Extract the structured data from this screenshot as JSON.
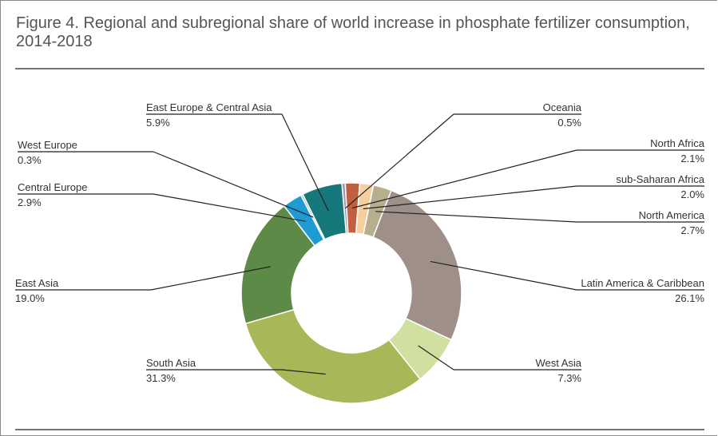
{
  "figure": {
    "title": "Figure 4. Regional and subregional share of world increase in phosphate fertilizer consumption, 2014-2018"
  },
  "chart_data": {
    "type": "pie",
    "title": "Figure 4. Regional and subregional share of world increase in phosphate fertilizer consumption, 2014-2018",
    "donut": true,
    "categories": [
      "Oceania",
      "North Africa",
      "sub-Saharan Africa",
      "North America",
      "Latin America & Caribbean",
      "West Asia",
      "South Asia",
      "East Asia",
      "Central Europe",
      "West Europe",
      "East Europe & Central Asia"
    ],
    "values": [
      0.5,
      2.1,
      2.0,
      2.7,
      26.1,
      7.3,
      31.3,
      19.0,
      2.9,
      0.3,
      5.9
    ],
    "labels": [
      "0.5%",
      "2.1%",
      "2.0%",
      "2.7%",
      "26.1%",
      "7.3%",
      "31.3%",
      "19.0%",
      "2.9%",
      "0.3%",
      "5.9%"
    ],
    "colors": [
      "#9a9ab8",
      "#c0603e",
      "#f5cfa0",
      "#b8ad8e",
      "#9e9089",
      "#cfe0a0",
      "#a8b858",
      "#5e8a48",
      "#1e9bd2",
      "#aab0b5",
      "#16787a"
    ],
    "unit": "%"
  }
}
